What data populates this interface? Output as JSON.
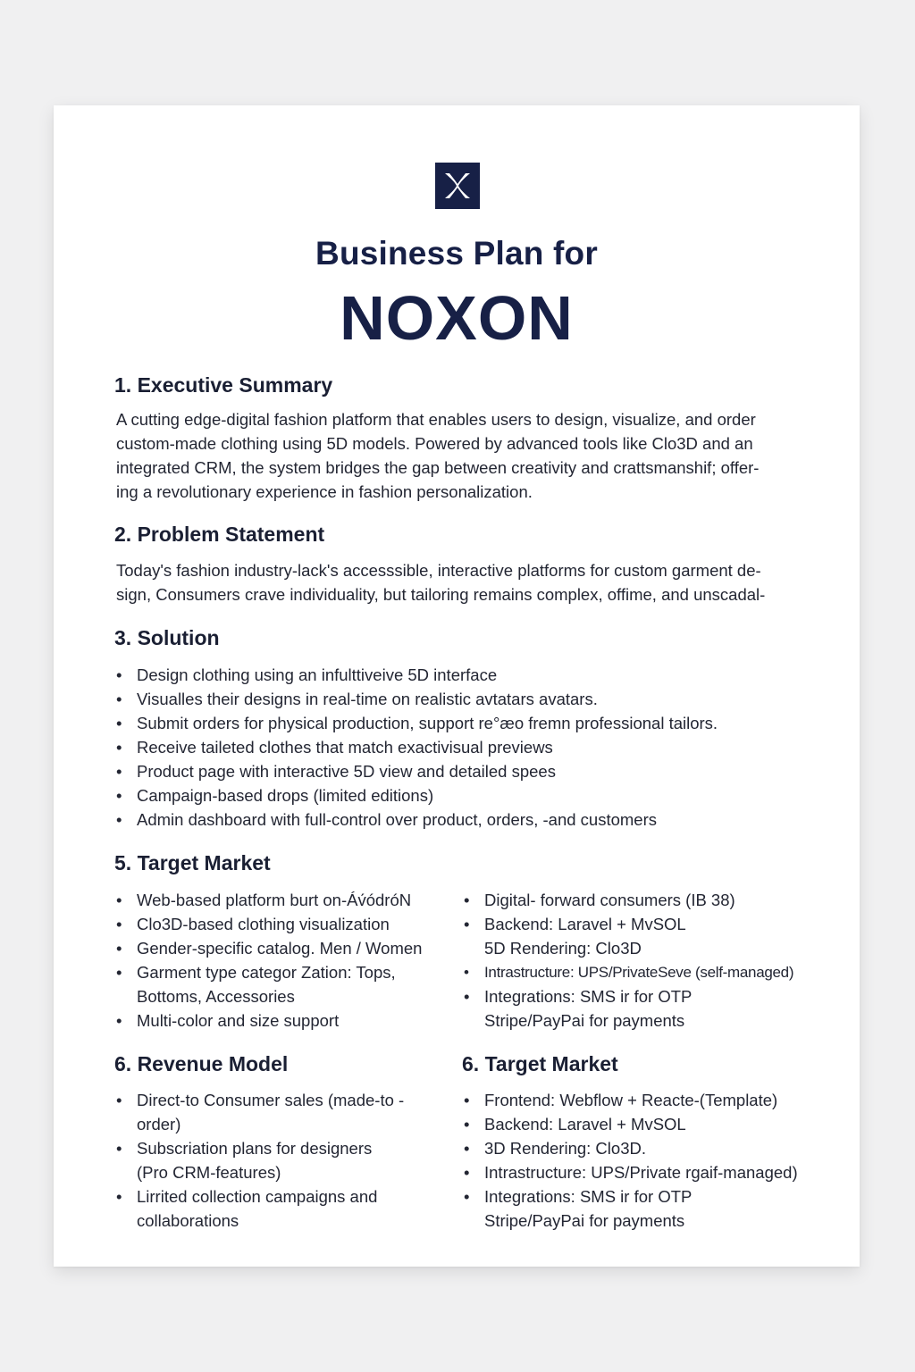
{
  "logo": {
    "icon": "noxon-x-logo-icon",
    "bg": "#172046"
  },
  "title": {
    "line1": "Business Plan for",
    "line2": "NOXON"
  },
  "executive_summary": {
    "heading": "1.  Executive Summary",
    "lines": [
      "A cutting edge-digital fashion platform that enables users to design, visualize, and order",
      "custom-made clothing using 5D models. Powered by advanced tools like Clo3D and an",
      "integrated CRM, the system bridges the gap between creativity and crattsmanshif; offer-",
      "ing a revolutionary experience in fashion personalization."
    ]
  },
  "problem_statement": {
    "heading": "2.  Problem Statement",
    "lines": [
      "Today's fashion industry-lack's accesssible, interactive platforms for custom garment de-",
      "sign, Consumers crave individuality, but tailoring remains complex, offime, and unscadal-"
    ]
  },
  "solution": {
    "heading": "3.  Solution",
    "items": [
      "Design clothing using an infulttiveive 5D interface",
      "Visualles their designs in real-time on realistic avtatars avatars.",
      "Submit orders for physical production, support re°æo fremn professional tailors.",
      "Receive taileted clothes that match exactivisual previews",
      "Product page with interactive 5D view and detailed spees",
      "Campaign-based drops (limited editions)",
      "Admin dashboard with full-control over product, orders,  -and customers"
    ]
  },
  "target_market": {
    "heading": "5.  Target Market",
    "left": [
      [
        "Web-based platform burt on-Áv́ódróN"
      ],
      [
        "Clo3D-based clothing visualization"
      ],
      [
        "Gender-specific catalog. Men / Women"
      ],
      [
        "Garment type categor Zation: Tops,",
        "Bottoms, Accessories"
      ],
      [
        "Multi-color and size support"
      ]
    ],
    "right": [
      [
        "Digital- forward consumers (IB 38)"
      ],
      [
        "Backend: Laravel + MvSOL",
        "5D Rendering: Clo3D"
      ],
      [
        "Intrastructure: UPS/PrivateSeve (self-managed)"
      ],
      [
        "Integrations: SMS ir for OTP",
        "Stripe/PayPai for payments"
      ]
    ]
  },
  "revenue_model": {
    "heading": "6.  Revenue Model",
    "items": [
      [
        "Direct-to Consumer sales (made-to -",
        "order)"
      ],
      [
        "Subscriation plans for designers",
        "(Pro CRM-features)"
      ],
      [
        "Lirrited collection campaigns and",
        "collaborations"
      ]
    ]
  },
  "target_market_2": {
    "heading": "6.  Target Market",
    "items": [
      [
        "Frontend: Webflow + Reacte-(Template)"
      ],
      [
        "Backend: Laravel + MvSOL"
      ],
      [
        "3D Rendering: Clo3D."
      ],
      [
        "Intrastructure: UPS/Private rɡaif-managed)"
      ],
      [
        "Integrations: SMS ir for OTP",
        "Stripe/PayPai for payments"
      ]
    ]
  }
}
